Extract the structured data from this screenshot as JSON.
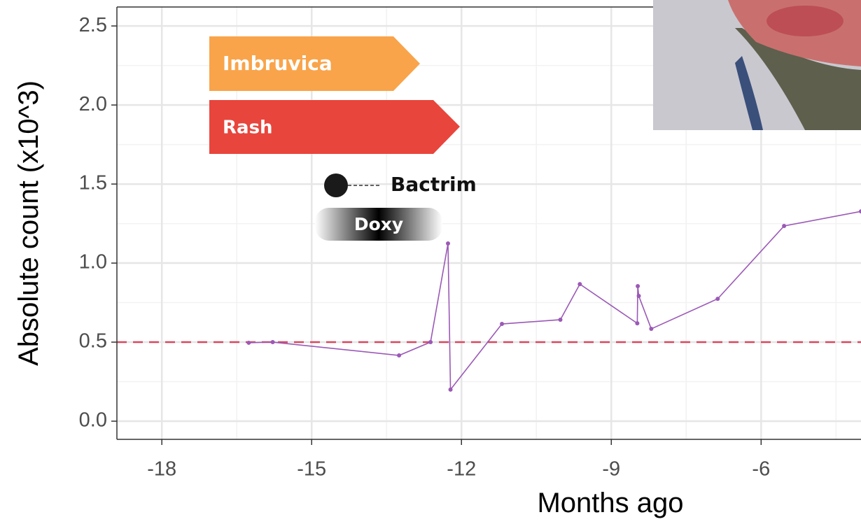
{
  "chart_data": {
    "type": "line",
    "x_label": "Months ago",
    "y_label": "Absolute count (x10^3)",
    "x": [
      -16.26,
      -15.78,
      -13.25,
      -12.62,
      -12.27,
      -12.22,
      -11.19,
      -10.02,
      -9.63,
      -8.48,
      -8.47,
      -8.45,
      -8.2,
      -6.87,
      -5.54,
      -4.0
    ],
    "series": [
      {
        "color": "#9b59b6",
        "values": [
          0.496,
          0.5,
          0.416,
          0.5,
          1.124,
          0.2,
          0.615,
          0.642,
          0.867,
          0.619,
          0.854,
          0.792,
          0.584,
          0.774,
          1.235,
          1.327
        ]
      }
    ],
    "xlim": [
      -18.9,
      -4.0
    ],
    "xticks": [
      -18,
      -15,
      -12,
      -9,
      -6
    ],
    "ylim": [
      -0.115,
      2.62
    ],
    "yticks": [
      {
        "value": 0,
        "label": "0.0"
      },
      0.5,
      {
        "value": 1,
        "label": "1.0"
      },
      1.5,
      {
        "value": 2,
        "label": "2.0"
      },
      2.5
    ],
    "grid": true,
    "reference_line": {
      "value": 0.5,
      "color": "#d9485f"
    },
    "annotations": [
      {
        "label": "Imbruvica",
        "color": "#f9a44a"
      },
      {
        "label": "Rash",
        "color": "#e8453c"
      },
      {
        "label": "Bactrim"
      },
      {
        "label": "Doxy"
      }
    ]
  }
}
